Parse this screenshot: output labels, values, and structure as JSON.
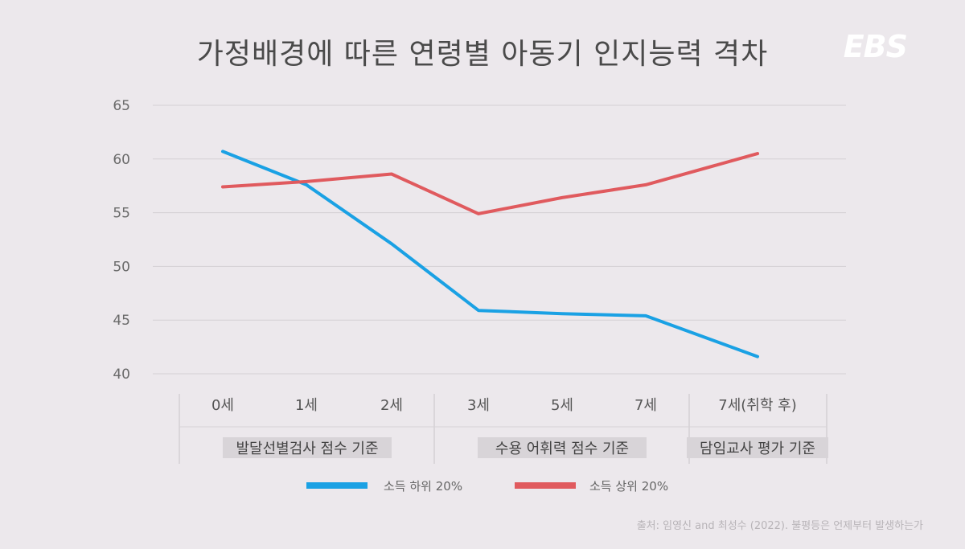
{
  "title": "가정배경에 따른 연령별 아동기 인지능력 격차",
  "logo": "EBS",
  "source": "출처: 임영신 and 최성수 (2022). 불평등은 언제부터 발생하는가",
  "colors": {
    "low": "#1aa1e4",
    "high": "#e05a5e",
    "background": "#ece8ec"
  },
  "chart_data": {
    "type": "line",
    "categories": [
      "0세",
      "1세",
      "2세",
      "3세",
      "5세",
      "7세",
      "7세(취학 후)"
    ],
    "groups": [
      {
        "label": "발달선별검사 점수 기준",
        "span": [
          0,
          2
        ]
      },
      {
        "label": "수용 어휘력 점수 기준",
        "span": [
          3,
          5
        ]
      },
      {
        "label": "담임교사 평가 기준",
        "span": [
          6,
          6
        ]
      }
    ],
    "ylim": [
      40,
      65
    ],
    "yticks": [
      40,
      45,
      50,
      55,
      60,
      65
    ],
    "grid": true,
    "legend": "bottom",
    "series": [
      {
        "name": "소득 하위 20%",
        "color": "#1aa1e4",
        "values": [
          60.7,
          57.6,
          52.1,
          45.9,
          45.6,
          45.4,
          41.6
        ]
      },
      {
        "name": "소득 상위 20%",
        "color": "#e05a5e",
        "values": [
          57.4,
          57.9,
          58.6,
          54.9,
          56.4,
          57.6,
          60.5
        ]
      }
    ]
  }
}
